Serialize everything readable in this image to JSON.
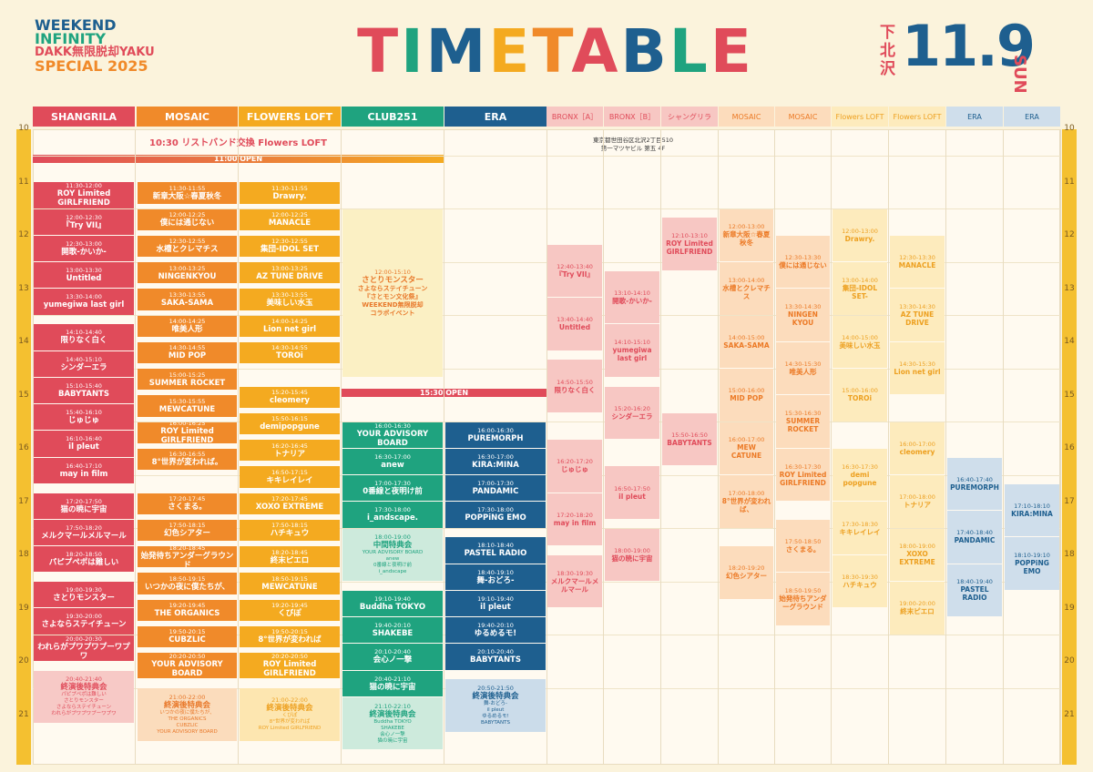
{
  "header": {
    "logo": [
      "WEEKEND",
      "INFINITY",
      "DAKK無限脱却YAKU",
      "SPECIAL 2025"
    ],
    "title": "TIMETABLE",
    "place": "下北沢",
    "date": "11.9",
    "weekday": "SUN"
  },
  "notices": {
    "wristband": "10:30 リストバンド交換 Flowers LOFT",
    "open_1": "11:00 OPEN",
    "open_2": "15:30 OPEN",
    "address": [
      "東京都世田谷区北沢2丁目510",
      "第一マツヤビル 第五 4F"
    ]
  },
  "hours": [
    10,
    11,
    12,
    13,
    14,
    15,
    16,
    17,
    18,
    19,
    20,
    21
  ],
  "columns": [
    {
      "name": "SHANGRILA",
      "color": "#e04b5a",
      "text_color": "#ffffff",
      "events": [
        {
          "time": "11:30-12:00",
          "name": "ROY Limited GIRLFRIEND"
        },
        {
          "time": "12:00-12:30",
          "name": "『Try VII』"
        },
        {
          "time": "12:30-13:00",
          "name": "開歌-かいか-"
        },
        {
          "time": "13:00-13:30",
          "name": "Untitled"
        },
        {
          "time": "13:30-14:00",
          "name": "yumegiwa last girl"
        },
        {
          "time": "14:10-14:40",
          "name": "限りなく白く"
        },
        {
          "time": "14:40-15:10",
          "name": "シンダーエラ"
        },
        {
          "time": "15:10-15:40",
          "name": "BABYTANTS"
        },
        {
          "time": "15:40-16:10",
          "name": "じゅじゅ"
        },
        {
          "time": "16:10-16:40",
          "name": "il pleut"
        },
        {
          "time": "16:40-17:10",
          "name": "may in film"
        },
        {
          "time": "17:20-17:50",
          "name": "猫の暁に宇宙"
        },
        {
          "time": "17:50-18:20",
          "name": "メルクマールメルマール"
        },
        {
          "time": "18:20-18:50",
          "name": "パピプペポは難しい"
        },
        {
          "time": "19:00-19:30",
          "name": "さとりモンスター"
        },
        {
          "time": "19:30-20:00",
          "name": "さよならステイチューン"
        },
        {
          "time": "20:00-20:30",
          "name": "われらがプワプワプーワプワ"
        },
        {
          "time": "20:40-21:40",
          "name": "終演後特典会",
          "color": "#f7c9c6",
          "text_color": "#e04b5a",
          "sub": [
            "パピプペポは難しい",
            "さとりモンスター",
            "さよならステイチューン",
            "われらがプワプワプーワプワ"
          ]
        }
      ]
    },
    {
      "name": "MOSAIC",
      "color": "#f08a2a",
      "text_color": "#ffffff",
      "events": [
        {
          "time": "11:30-11:55",
          "name": "新章大阪☆春夏秋冬"
        },
        {
          "time": "12:00-12:25",
          "name": "僕には通じない"
        },
        {
          "time": "12:30-12:55",
          "name": "水槽とクレマチス"
        },
        {
          "time": "13:00-13:25",
          "name": "NINGENKYOU"
        },
        {
          "time": "13:30-13:55",
          "name": "SAKA-SAMA"
        },
        {
          "time": "14:00-14:25",
          "name": "唯美人形"
        },
        {
          "time": "14:30-14:55",
          "name": "MID POP"
        },
        {
          "time": "15:00-15:25",
          "name": "SUMMER ROCKET"
        },
        {
          "time": "15:30-15:55",
          "name": "MEWCATUNE"
        },
        {
          "time": "16:00-16:25",
          "name": "ROY Limited GIRLFRIEND"
        },
        {
          "time": "16:30-16:55",
          "name": "8°世界が変われば。"
        },
        {
          "time": "17:20-17:45",
          "name": "さくまる。"
        },
        {
          "time": "17:50-18:15",
          "name": "幻色シアター"
        },
        {
          "time": "18:20-18:45",
          "name": "始発待ちアンダーグラウンド"
        },
        {
          "time": "18:50-19:15",
          "name": "いつかの夜に僕たちが、"
        },
        {
          "time": "19:20-19:45",
          "name": "THE ORGANICS"
        },
        {
          "time": "19:50-20:15",
          "name": "CUBZLIC"
        },
        {
          "time": "20:20-20:50",
          "name": "YOUR ADVISORY BOARD"
        },
        {
          "time": "21:00-22:00",
          "name": "終演後特典会",
          "color": "#fbdcbc",
          "text_color": "#e8782a",
          "sub": [
            "いつかの夜に僕たちが、",
            "THE ORGANICS",
            "CUBZLIC",
            "YOUR ADVISORY BOARD"
          ]
        }
      ]
    },
    {
      "name": "FLOWERS LOFT",
      "color": "#f4aa20",
      "text_color": "#ffffff",
      "events": [
        {
          "time": "11:30-11:55",
          "name": "Drawry."
        },
        {
          "time": "12:00-12:25",
          "name": "MANACLE"
        },
        {
          "time": "12:30-12:55",
          "name": "集団-IDOL SET"
        },
        {
          "time": "13:00-13:25",
          "name": "AZ TUNE DRIVE"
        },
        {
          "time": "13:30-13:55",
          "name": "美味しい水玉"
        },
        {
          "time": "14:00-14:25",
          "name": "Lion net girl"
        },
        {
          "time": "14:30-14:55",
          "name": "TOROi"
        },
        {
          "time": "15:20-15:45",
          "name": "cleomery"
        },
        {
          "time": "15:50-16:15",
          "name": "demipopgune"
        },
        {
          "time": "16:20-16:45",
          "name": "トナリア"
        },
        {
          "time": "16:50-17:15",
          "name": "キキレイレイ"
        },
        {
          "time": "17:20-17:45",
          "name": "XOXO EXTREME"
        },
        {
          "time": "17:50-18:15",
          "name": "ハチキュウ"
        },
        {
          "time": "18:20-18:45",
          "name": "終末ピエロ"
        },
        {
          "time": "18:50-19:15",
          "name": "MEWCATUNE"
        },
        {
          "time": "19:20-19:45",
          "name": "くびぽ"
        },
        {
          "time": "19:50-20:15",
          "name": "8°世界が変われば"
        },
        {
          "time": "20:20-20:50",
          "name": "ROY Limited GIRLFRIEND"
        },
        {
          "time": "21:00-22:00",
          "name": "終演後特典会",
          "color": "#fde6b0",
          "text_color": "#eda020",
          "sub": [
            "くびぽ",
            "8°世界が変われば",
            "ROY Limited GIRLFRIEND"
          ]
        }
      ]
    },
    {
      "name": "CLUB251",
      "color": "#1fa37f",
      "text_color": "#ffffff",
      "events": [
        {
          "time": "12:00-15:10",
          "name": "さとりモンスター",
          "color": "#fbf0c4",
          "text_color": "#e8782a",
          "sub": [
            "さよならステイチューン",
            "『さとモン文化祭』",
            "WEEKEND無限脱却",
            "コラボイベント"
          ]
        },
        {
          "time": "16:00-16:30",
          "name": "YOUR ADVISORY BOARD"
        },
        {
          "time": "16:30-17:00",
          "name": "anew"
        },
        {
          "time": "17:00-17:30",
          "name": "0番線と夜明け前"
        },
        {
          "time": "17:30-18:00",
          "name": "i_andscape."
        },
        {
          "time": "18:00-19:00",
          "name": "中間特典会",
          "color": "#cdeadc",
          "text_color": "#1fa37f",
          "sub": [
            "YOUR ADVISORY BOARD",
            "anew",
            "0番線と夜明け前",
            "i_andscape"
          ]
        },
        {
          "time": "19:10-19:40",
          "name": "Buddha TOKYO"
        },
        {
          "time": "19:40-20:10",
          "name": "SHAKEBE"
        },
        {
          "time": "20:10-20:40",
          "name": "会心ノ一撃"
        },
        {
          "time": "20:40-21:10",
          "name": "猫の暁に宇宙"
        },
        {
          "time": "21:10-22:10",
          "name": "終演後特典会",
          "color": "#cdeadc",
          "text_color": "#1fa37f",
          "sub": [
            "Buddha TOKYO",
            "SHAKEBE",
            "会心ノ一撃",
            "猫の暁に宇宙"
          ]
        }
      ]
    },
    {
      "name": "ERA",
      "color": "#1e5f8f",
      "text_color": "#ffffff",
      "events": [
        {
          "time": "16:00-16:30",
          "name": "PUREMORPH"
        },
        {
          "time": "16:30-17:00",
          "name": "KIRA:MINA"
        },
        {
          "time": "17:00-17:30",
          "name": "PANDAMIC"
        },
        {
          "time": "17:30-18:00",
          "name": "POPPiNG EMO"
        },
        {
          "time": "18:10-18:40",
          "name": "PASTEL RADIO"
        },
        {
          "time": "18:40-19:10",
          "name": "舞-おどろ-"
        },
        {
          "time": "19:10-19:40",
          "name": "il pleut"
        },
        {
          "time": "19:40-20:10",
          "name": "ゆるめるモ!"
        },
        {
          "time": "20:10-20:40",
          "name": "BABYTANTS"
        },
        {
          "time": "20:50-21:50",
          "name": "終演後特典会",
          "color": "#cbdcea",
          "text_color": "#1e5f8f",
          "sub": [
            "舞-おどろ-",
            "il pleut",
            "ゆるめるモ!",
            "BABYTANTS"
          ]
        }
      ]
    },
    {
      "name": "BRONX［A］",
      "color": "#f7c7c3",
      "text_color": "#e04b5a",
      "events": [
        {
          "time": "12:40-13:40",
          "name": "『Try VII』"
        },
        {
          "time": "13:40-14:40",
          "name": "Untitled"
        },
        {
          "time": "14:50-15:50",
          "name": "限りなく白く"
        },
        {
          "time": "16:20-17:20",
          "name": "じゅじゅ"
        },
        {
          "time": "17:20-18:20",
          "name": "may in film"
        },
        {
          "time": "18:30-19:30",
          "name": "メルクマールメルマール"
        }
      ]
    },
    {
      "name": "BRONX［B］",
      "color": "#f7c7c3",
      "text_color": "#e04b5a",
      "events": [
        {
          "time": "13:10-14:10",
          "name": "開歌-かいか-"
        },
        {
          "time": "14:10-15:10",
          "name": "yumegiwa last girl"
        },
        {
          "time": "15:20-16:20",
          "name": "シンダーエラ"
        },
        {
          "time": "16:50-17:50",
          "name": "il pleut"
        },
        {
          "time": "18:00-19:00",
          "name": "猫の暁に宇宙"
        }
      ]
    },
    {
      "name": "シャングリラ",
      "color": "#f7c7c3",
      "text_color": "#e04b5a",
      "events": [
        {
          "time": "12:10-13:10",
          "name": "ROY Limited GIRLFRIEND"
        },
        {
          "time": "15:50-16:50",
          "name": "BABYTANTS"
        }
      ]
    },
    {
      "name": "MOSAIC",
      "color": "#fcdcbc",
      "text_color": "#ec7a26",
      "events": [
        {
          "time": "12:00-13:00",
          "name": "新章大阪☆春夏秋冬"
        },
        {
          "time": "13:00-14:00",
          "name": "水槽とクレマチス"
        },
        {
          "time": "14:00-15:00",
          "name": "SAKA-SAMA"
        },
        {
          "time": "15:00-16:00",
          "name": "MID POP"
        },
        {
          "time": "16:00-17:00",
          "name": "MEW CATUNE"
        },
        {
          "time": "17:00-18:00",
          "name": "8°世界が変われば、"
        },
        {
          "time": "18:20-19:20",
          "name": "幻色シアター"
        }
      ]
    },
    {
      "name": "MOSAIC",
      "color": "#fcdcbc",
      "text_color": "#ec7a26",
      "events": [
        {
          "time": "12:30-13:30",
          "name": "僕には通じない"
        },
        {
          "time": "13:30-14:30",
          "name": "NINGEN KYOU"
        },
        {
          "time": "14:30-15:30",
          "name": "唯美人形"
        },
        {
          "time": "15:30-16:30",
          "name": "SUMMER ROCKET"
        },
        {
          "time": "16:30-17:30",
          "name": "ROY Limited GIRLFRIEND"
        },
        {
          "time": "17:50-18:50",
          "name": "さくまる。"
        },
        {
          "time": "18:50-19:50",
          "name": "始発待ちアンダーグラウンド"
        }
      ]
    },
    {
      "name": "Flowers LOFT",
      "color": "#fdebbd",
      "text_color": "#eda020",
      "events": [
        {
          "time": "12:00-13:00",
          "name": "Drawry."
        },
        {
          "time": "13:00-14:00",
          "name": "集団-IDOL SET-"
        },
        {
          "time": "14:00-15:00",
          "name": "美味しい水玉"
        },
        {
          "time": "15:00-16:00",
          "name": "TOROi"
        },
        {
          "time": "16:30-17:30",
          "name": "demi popgune"
        },
        {
          "time": "17:30-18:30",
          "name": "キキレイレイ"
        },
        {
          "time": "18:30-19:30",
          "name": "ハチキュウ"
        }
      ]
    },
    {
      "name": "Flowers LOFT",
      "color": "#fdebbd",
      "text_color": "#eda020",
      "events": [
        {
          "time": "12:30-13:30",
          "name": "MANACLE"
        },
        {
          "time": "13:30-14:30",
          "name": "AZ TUNE DRIVE"
        },
        {
          "time": "14:30-15:30",
          "name": "Lion net girl"
        },
        {
          "time": "16:00-17:00",
          "name": "cleomery"
        },
        {
          "time": "17:00-18:00",
          "name": "トナリア"
        },
        {
          "time": "18:00-19:00",
          "name": "XOXO EXTREME"
        },
        {
          "time": "19:00-20:00",
          "name": "終末ピエロ"
        }
      ]
    },
    {
      "name": "ERA",
      "color": "#cfdeeb",
      "text_color": "#1e5f8f",
      "events": [
        {
          "time": "16:40-17:40",
          "name": "PUREMORPH"
        },
        {
          "time": "17:40-18:40",
          "name": "PANDAMIC"
        },
        {
          "time": "18:40-19:40",
          "name": "PASTEL RADIO"
        }
      ]
    },
    {
      "name": "ERA",
      "color": "#cfdeeb",
      "text_color": "#1e5f8f",
      "events": [
        {
          "time": "17:10-18:10",
          "name": "KIRA:MINA"
        },
        {
          "time": "18:10-19:10",
          "name": "POPPiNG EMO"
        }
      ]
    }
  ]
}
